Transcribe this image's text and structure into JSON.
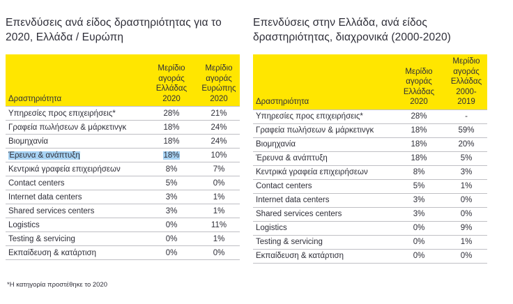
{
  "left": {
    "title": "Επενδύσεις ανά είδος δραστηριότητας για το 2020, Ελλάδα / Ευρώπη",
    "headers": [
      "Δραστηριότητα",
      "Μερίδιο αγοράς Ελλάδας 2020",
      "Μερίδιο αγοράς Ευρώπης 2020"
    ],
    "rows": [
      [
        "Υπηρεσίες προς επιχειρήσεις*",
        "28%",
        "21%"
      ],
      [
        "Γραφεία πωλήσεων & μάρκετινγκ",
        "18%",
        "24%"
      ],
      [
        "Βιομηχανία",
        "18%",
        "24%"
      ],
      [
        "Έρευνα & ανάπτυξη",
        "18%",
        "10%"
      ],
      [
        "Κεντρικά γραφεία επιχειρήσεων",
        "8%",
        "7%"
      ],
      [
        "Contact centers",
        "5%",
        "0%"
      ],
      [
        "Internet data centers",
        "3%",
        "1%"
      ],
      [
        "Shared services centers",
        "3%",
        "1%"
      ],
      [
        "Logistics",
        "0%",
        "11%"
      ],
      [
        "Testing & servicing",
        "0%",
        "1%"
      ],
      [
        "Εκπαίδευση & κατάρτιση",
        "0%",
        "0%"
      ]
    ]
  },
  "right": {
    "title": "Επενδύσεις στην Ελλάδα, ανά είδος δραστηριότητας, διαχρονικά (2000-2020)",
    "headers": [
      "Δραστηριότητα",
      "Μερίδιο αγοράς Ελλάδας 2020",
      "Μερίδιο αγοράς Ελλάδας 2000-2019"
    ],
    "rows": [
      [
        "Υπηρεσίες προς επιχειρήσεις*",
        "28%",
        "-"
      ],
      [
        "Γραφεία πωλήσεων & μάρκετινγκ",
        "18%",
        "59%"
      ],
      [
        "Βιομηχανία",
        "18%",
        "20%"
      ],
      [
        "Έρευνα & ανάπτυξη",
        "18%",
        "5%"
      ],
      [
        "Κεντρικά γραφεία επιχειρήσεων",
        "8%",
        "3%"
      ],
      [
        "Contact centers",
        "5%",
        "1%"
      ],
      [
        "Internet data centers",
        "3%",
        "0%"
      ],
      [
        "Shared services centers",
        "3%",
        "0%"
      ],
      [
        "Logistics",
        "0%",
        "9%"
      ],
      [
        "Testing & servicing",
        "0%",
        "1%"
      ],
      [
        "Εκπαίδευση & κατάρτιση",
        "0%",
        "0%"
      ]
    ]
  },
  "footnote": "*Η κατηγορία προστέθηκε το 2020",
  "colors": {
    "header_bg": "#ffe600",
    "text": "#2e2e38",
    "row_border": "#bfbfc4",
    "selection_highlight": "#a8d4f5"
  }
}
